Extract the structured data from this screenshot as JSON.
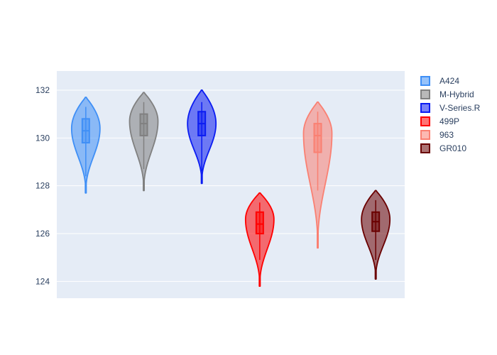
{
  "chart_data": {
    "type": "violin",
    "yaxis": {
      "range": [
        123.3,
        132.8
      ],
      "ticks": [
        124,
        126,
        128,
        130,
        132
      ]
    },
    "grid": true,
    "legend_position": "top-right",
    "series": [
      {
        "name": "A424",
        "color": "#3f8ff6",
        "min": 127.7,
        "q1": 129.8,
        "median": 130.3,
        "q3": 130.8,
        "max": 131.7,
        "whisker_low": 128.4,
        "whisker_high": 131.3,
        "mode": 130.4
      },
      {
        "name": "M-Hybrid",
        "color": "#808080",
        "min": 127.8,
        "q1": 130.1,
        "median": 130.6,
        "q3": 131.0,
        "max": 131.9,
        "whisker_low": 128.7,
        "whisker_high": 131.5,
        "mode": 130.7
      },
      {
        "name": "V-Series.R",
        "color": "#0b1cf2",
        "min": 128.1,
        "q1": 130.1,
        "median": 130.6,
        "q3": 131.1,
        "max": 132.0,
        "whisker_low": 128.6,
        "whisker_high": 131.5,
        "mode": 130.6
      },
      {
        "name": "499P",
        "color": "#ff0000",
        "min": 123.8,
        "q1": 126.0,
        "median": 126.4,
        "q3": 126.9,
        "max": 127.7,
        "whisker_low": 124.9,
        "whisker_high": 127.3,
        "mode": 126.6
      },
      {
        "name": "963",
        "color": "#fa8072",
        "min": 125.4,
        "q1": 129.4,
        "median": 130.1,
        "q3": 130.6,
        "max": 131.5,
        "whisker_low": 127.8,
        "whisker_high": 131.1,
        "mode": 130.2
      },
      {
        "name": "GR010",
        "color": "#6a0000",
        "min": 124.1,
        "q1": 126.1,
        "median": 126.5,
        "q3": 126.9,
        "max": 127.8,
        "whisker_low": 124.9,
        "whisker_high": 127.4,
        "mode": 126.6
      }
    ]
  }
}
